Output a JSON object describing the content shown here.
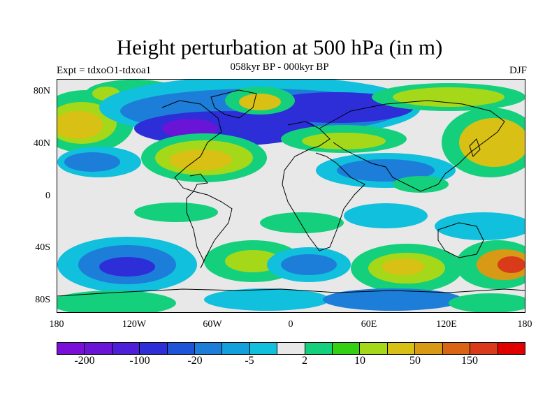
{
  "header": {
    "title": "Height perturbation at 500 hPa (in m)",
    "subtitle": "058kyr BP - 000kyr BP",
    "left": "Expt = tdxoO1-tdxoa1",
    "right": "DJF"
  },
  "axes": {
    "lat_labels": [
      "80N",
      "40N",
      "0",
      "40S",
      "80S"
    ],
    "lon_labels": [
      "180",
      "120W",
      "60W",
      "0",
      "60E",
      "120E",
      "180"
    ]
  },
  "colorbar": {
    "colors": [
      "#7a10d8",
      "#6a14d8",
      "#4e1ed8",
      "#2d2ed8",
      "#1e54d8",
      "#1c7ed8",
      "#14a0dc",
      "#10c0dc",
      "#e8e8e8",
      "#14d07c",
      "#34d014",
      "#a6d81a",
      "#d8c014",
      "#d89a14",
      "#d86414",
      "#d83a1a",
      "#e00000"
    ],
    "labels": [
      "-200",
      "-100",
      "-20",
      "-5",
      "2",
      "10",
      "50",
      "150"
    ]
  },
  "field_colors": {
    "neutral": "#e8e8e8",
    "light_blue": "#10c0dc",
    "mid_blue": "#1c7ed8",
    "dark_blue": "#2d2ed8",
    "purple": "#6a14d8",
    "green": "#14d07c",
    "yellow_green": "#a6d81a",
    "yellow": "#d8c014",
    "orange": "#d89a14",
    "red": "#d83a1a",
    "coast": "#000000"
  }
}
